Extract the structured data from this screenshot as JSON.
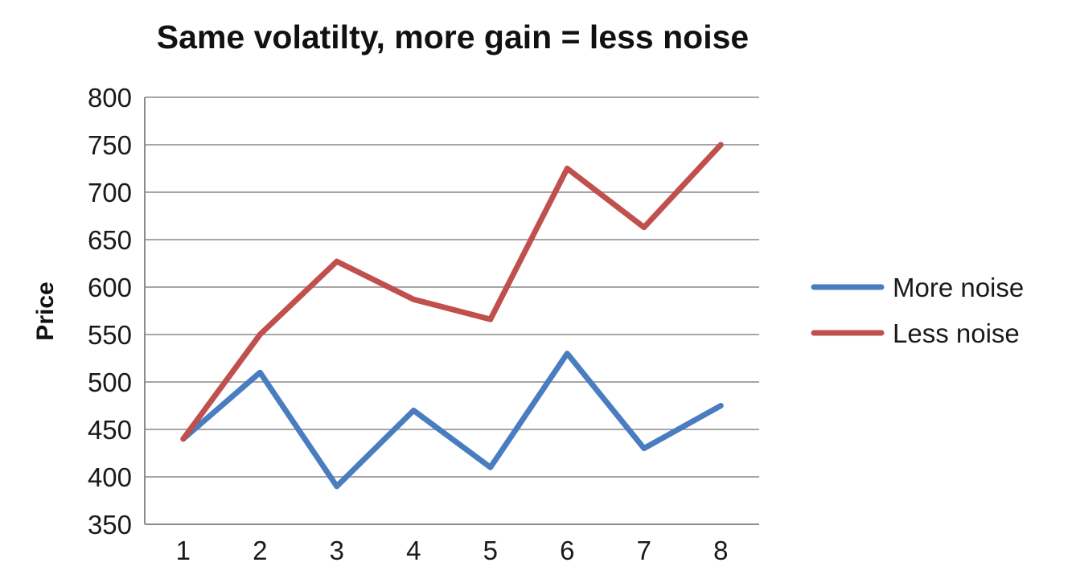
{
  "chart_data": {
    "type": "line",
    "title": "Same volatilty, more gain = less noise",
    "xlabel": "",
    "ylabel": "Price",
    "categories": [
      "1",
      "2",
      "3",
      "4",
      "5",
      "6",
      "7",
      "8"
    ],
    "ylim": [
      350,
      800
    ],
    "yticks": [
      350,
      400,
      450,
      500,
      550,
      600,
      650,
      700,
      750,
      800
    ],
    "grid": true,
    "legend_position": "right",
    "series": [
      {
        "name": "More noise",
        "color": "#4a7dc0",
        "values": [
          440,
          510,
          390,
          470,
          410,
          530,
          430,
          475
        ]
      },
      {
        "name": "Less noise",
        "color": "#c0504d",
        "values": [
          440,
          550,
          627,
          587,
          566,
          725,
          663,
          750
        ]
      }
    ]
  }
}
